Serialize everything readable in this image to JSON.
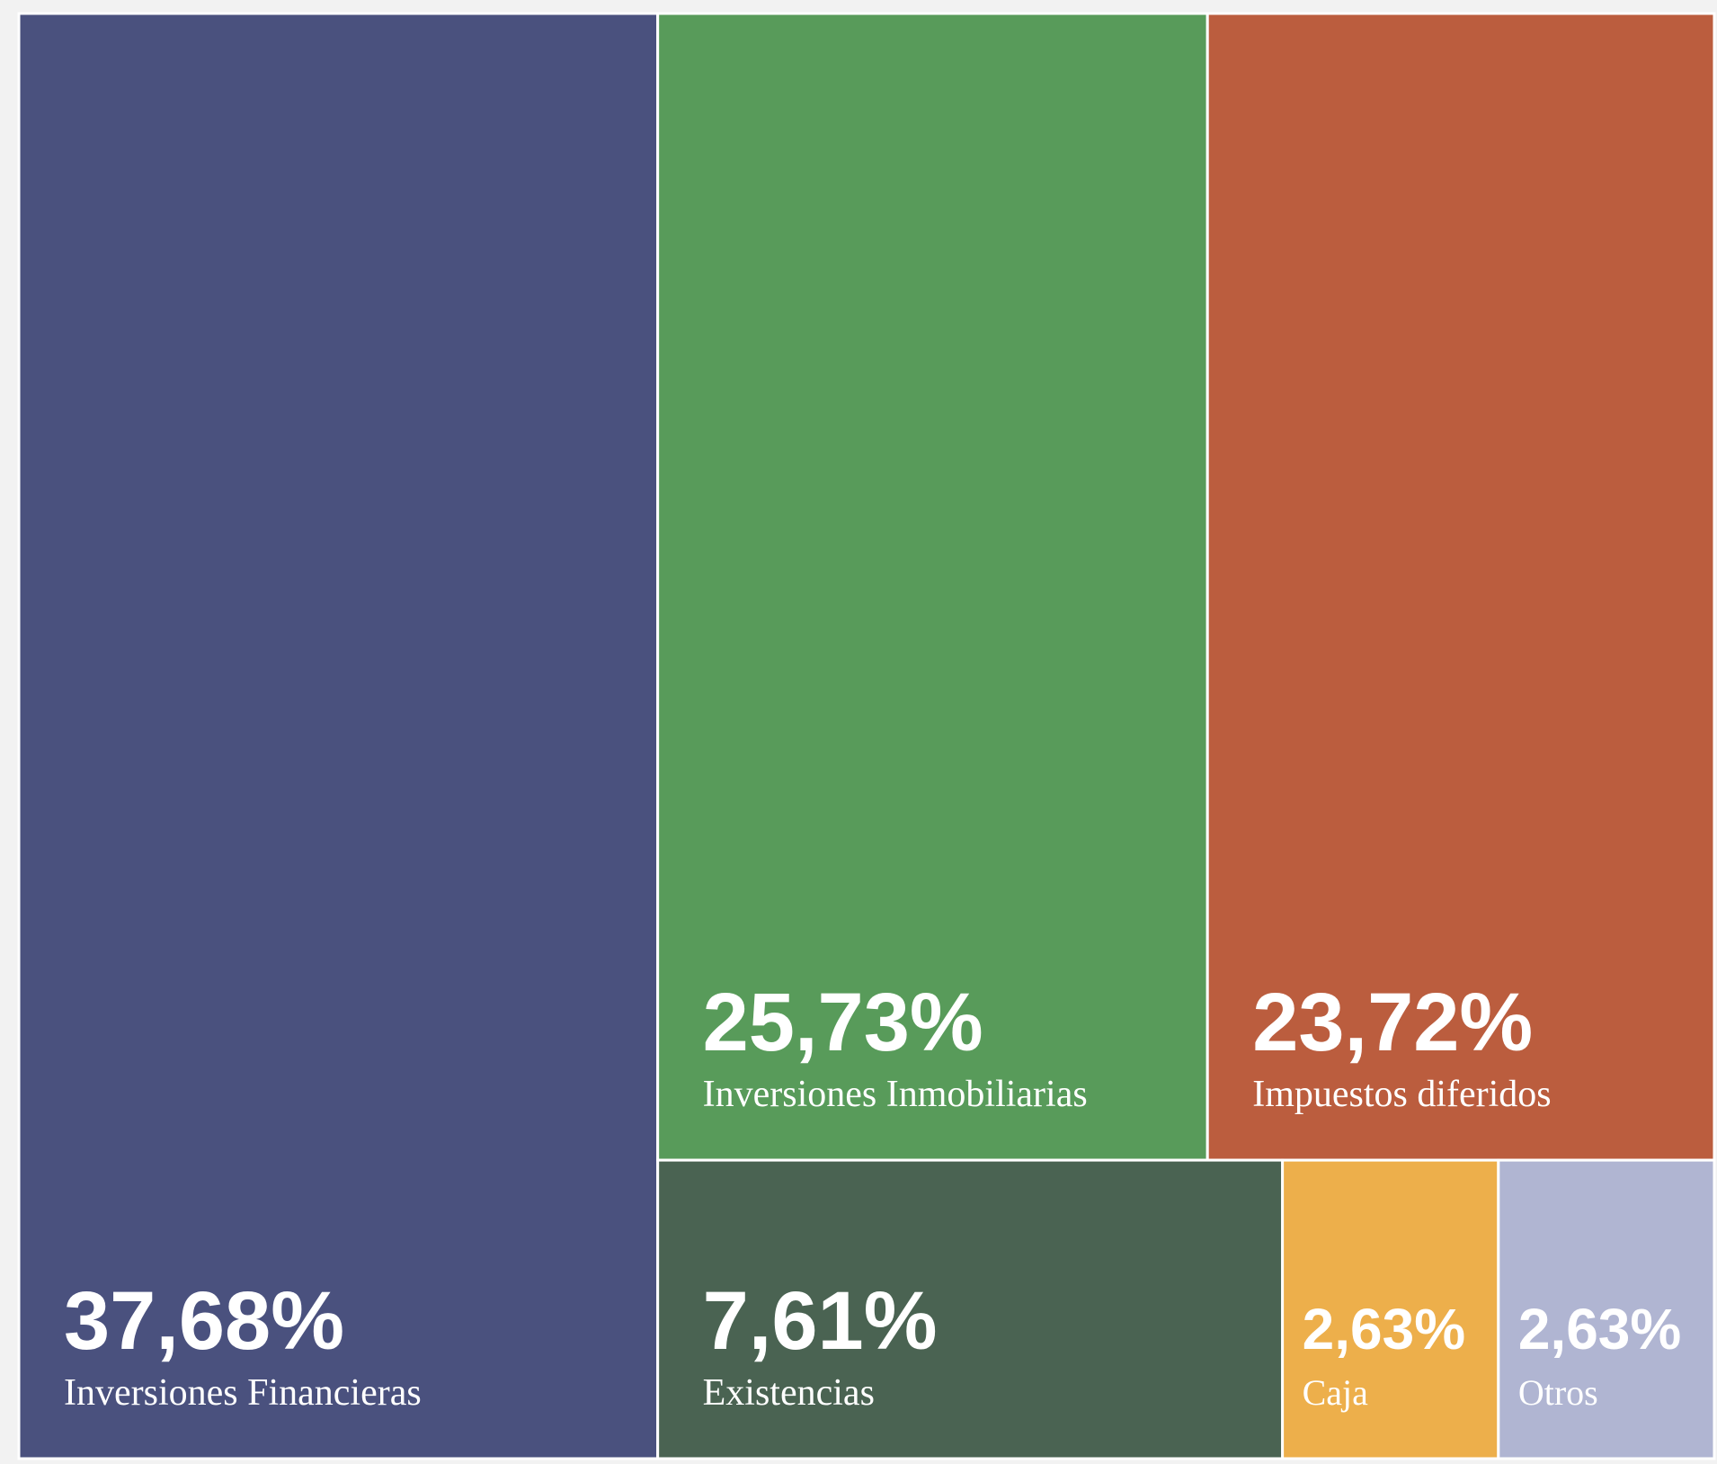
{
  "chart_data": {
    "type": "treemap",
    "categories": [
      "Inversiones Financieras",
      "Inversiones Inmobiliarias",
      "Impuestos diferidos",
      "Existencias",
      "Caja",
      "Otros"
    ],
    "values": [
      37.68,
      25.73,
      23.72,
      7.61,
      2.63,
      2.63
    ],
    "value_labels": [
      "37,68%",
      "25,73%",
      "23,72%",
      "7,61%",
      "2,63%",
      "2,63%"
    ],
    "colors": [
      "#4a517e",
      "#589b5a",
      "#bb5d3e",
      "#4a6352",
      "#edaf4b",
      "#b0b5d2"
    ]
  }
}
